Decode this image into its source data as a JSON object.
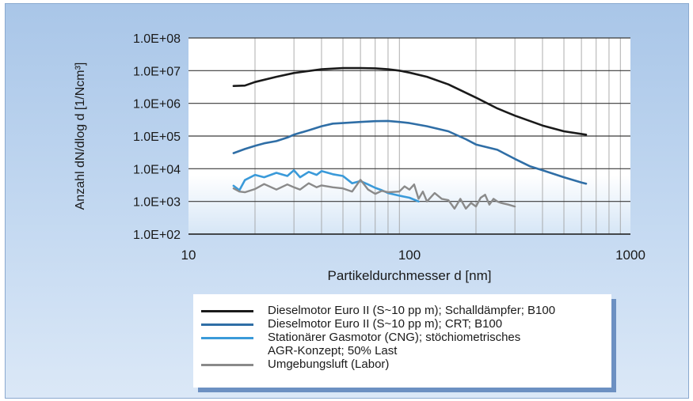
{
  "chart_data": {
    "type": "line",
    "xscale": "log",
    "yscale": "log",
    "xlim": [
      10,
      1000
    ],
    "ylim": [
      100,
      100000000
    ],
    "xlabel": "Partikeldurchmesser d [nm]",
    "ylabel": "Anzahl dN/dlog d [1/Ncm³]",
    "x_ticks": [
      "10",
      "100",
      "1000"
    ],
    "y_ticks": [
      "1.0E+02",
      "1.0E+03",
      "1.0E+04",
      "1.0E+05",
      "1.0E+06",
      "1.0E+07",
      "1.0E+08"
    ],
    "grid": true,
    "legend_position": "bottom",
    "series": [
      {
        "name": "Dieselmotor Euro II (S~10 pp m); Schalldämpfer; B100",
        "color": "#1a1a1a",
        "x": [
          16,
          18,
          20,
          25,
          30,
          40,
          50,
          60,
          70,
          80,
          90,
          100,
          120,
          150,
          200,
          250,
          300,
          400,
          500,
          630
        ],
        "y": [
          3400000,
          3500000,
          4500000,
          6500000,
          8500000,
          11000000,
          12000000,
          12000000,
          11800000,
          11000000,
          10000000,
          8700000,
          6500000,
          3800000,
          1500000,
          700000,
          420000,
          210000,
          140000,
          110000
        ]
      },
      {
        "name": "Dieselmotor Euro II (S~10 pp m); CRT; B100",
        "color": "#2f6ea6",
        "x": [
          16,
          18,
          20,
          22,
          25,
          28,
          30,
          35,
          40,
          45,
          50,
          60,
          70,
          80,
          90,
          100,
          120,
          150,
          180,
          200,
          250,
          300,
          350,
          400,
          500,
          600,
          630
        ],
        "y": [
          30000,
          40000,
          50000,
          60000,
          70000,
          90000,
          110000,
          150000,
          200000,
          240000,
          250000,
          270000,
          285000,
          290000,
          270000,
          250000,
          200000,
          140000,
          80000,
          55000,
          38000,
          20000,
          12000,
          9000,
          5500,
          3800,
          3500
        ]
      },
      {
        "name": "Stationärer Gasmotor (CNG); stöchiometrisches AGR-Konzept; 50% Last",
        "color": "#3a9ad9",
        "x": [
          16,
          17,
          18,
          20,
          22,
          25,
          28,
          30,
          32,
          35,
          38,
          40,
          45,
          50,
          55,
          60,
          65,
          70,
          75,
          80,
          90,
          100,
          110
        ],
        "y": [
          3000,
          2200,
          4500,
          6500,
          5500,
          7500,
          6000,
          9000,
          5500,
          8000,
          6500,
          8500,
          6800,
          6000,
          3600,
          4200,
          3300,
          2600,
          2200,
          1800,
          1500,
          1300,
          1000
        ]
      },
      {
        "name": "Umgebungsluft (Labor)",
        "color": "#8a8a8a",
        "x": [
          16,
          17,
          18,
          20,
          22,
          25,
          28,
          30,
          32,
          35,
          38,
          40,
          45,
          50,
          55,
          60,
          65,
          70,
          75,
          80,
          90,
          95,
          100,
          105,
          110,
          115,
          120,
          130,
          140,
          150,
          160,
          170,
          180,
          190,
          200,
          210,
          220,
          230,
          240,
          250,
          260,
          280,
          300
        ],
        "y": [
          2500,
          2000,
          1900,
          2400,
          3400,
          2300,
          3300,
          2700,
          2300,
          3600,
          2700,
          3100,
          2700,
          2500,
          2000,
          4600,
          2300,
          1700,
          2100,
          1900,
          2000,
          2900,
          2300,
          3300,
          1200,
          2000,
          1000,
          1800,
          1200,
          1100,
          600,
          1200,
          600,
          900,
          700,
          1300,
          1600,
          800,
          1200,
          1000,
          900,
          800,
          700
        ]
      }
    ]
  }
}
